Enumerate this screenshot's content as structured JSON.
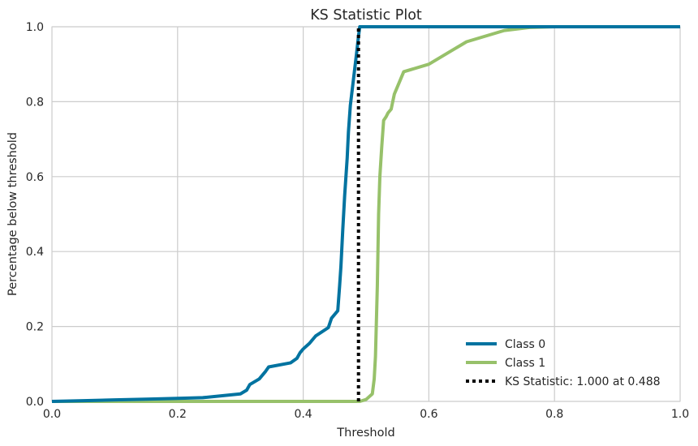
{
  "chart_data": {
    "type": "line",
    "title": "KS Statistic Plot",
    "xlabel": "Threshold",
    "ylabel": "Percentage below threshold",
    "xlim": [
      0.0,
      1.0
    ],
    "ylim": [
      0.0,
      1.0
    ],
    "xticks": [
      "0.0",
      "0.2",
      "0.4",
      "0.6",
      "0.8",
      "1.0"
    ],
    "yticks": [
      "0.0",
      "0.2",
      "0.4",
      "0.6",
      "0.8",
      "1.0"
    ],
    "grid": true,
    "legend_position": "bottom-right",
    "series": [
      {
        "name": "Class 0",
        "color": "#0173a0",
        "style": "solid",
        "x": [
          0.0,
          0.05,
          0.1,
          0.15,
          0.2,
          0.24,
          0.3,
          0.31,
          0.315,
          0.33,
          0.34,
          0.345,
          0.38,
          0.39,
          0.395,
          0.4,
          0.41,
          0.42,
          0.44,
          0.445,
          0.455,
          0.458,
          0.46,
          0.463,
          0.466,
          0.47,
          0.472,
          0.475,
          0.48,
          0.485,
          0.488,
          0.49,
          0.5,
          0.6,
          0.7,
          0.8,
          1.0
        ],
        "y": [
          0.0,
          0.002,
          0.004,
          0.006,
          0.008,
          0.01,
          0.02,
          0.03,
          0.045,
          0.06,
          0.08,
          0.092,
          0.103,
          0.115,
          0.13,
          0.14,
          0.155,
          0.175,
          0.197,
          0.222,
          0.242,
          0.31,
          0.36,
          0.46,
          0.55,
          0.65,
          0.72,
          0.79,
          0.86,
          0.93,
          0.975,
          1.0,
          1.0,
          1.0,
          1.0,
          1.0,
          1.0
        ]
      },
      {
        "name": "Class 1",
        "color": "#97c16a",
        "style": "solid",
        "x": [
          0.0,
          0.1,
          0.2,
          0.3,
          0.4,
          0.485,
          0.49,
          0.5,
          0.51,
          0.513,
          0.515,
          0.518,
          0.52,
          0.522,
          0.525,
          0.528,
          0.532,
          0.535,
          0.54,
          0.545,
          0.55,
          0.555,
          0.56,
          0.6,
          0.61,
          0.62,
          0.64,
          0.65,
          0.66,
          0.68,
          0.7,
          0.72,
          0.76,
          0.8,
          1.0
        ],
        "y": [
          0.0,
          0.0,
          0.0,
          0.0,
          0.0,
          0.0,
          0.0,
          0.005,
          0.02,
          0.06,
          0.12,
          0.31,
          0.5,
          0.6,
          0.68,
          0.75,
          0.76,
          0.77,
          0.78,
          0.82,
          0.84,
          0.86,
          0.88,
          0.9,
          0.91,
          0.92,
          0.94,
          0.95,
          0.96,
          0.97,
          0.98,
          0.99,
          0.998,
          1.0,
          1.0
        ]
      },
      {
        "name": "KS Statistic: 1.000 at 0.488",
        "color": "#000000",
        "style": "dotted",
        "x": [
          0.488,
          0.488
        ],
        "y": [
          0.0,
          1.0
        ]
      }
    ]
  }
}
